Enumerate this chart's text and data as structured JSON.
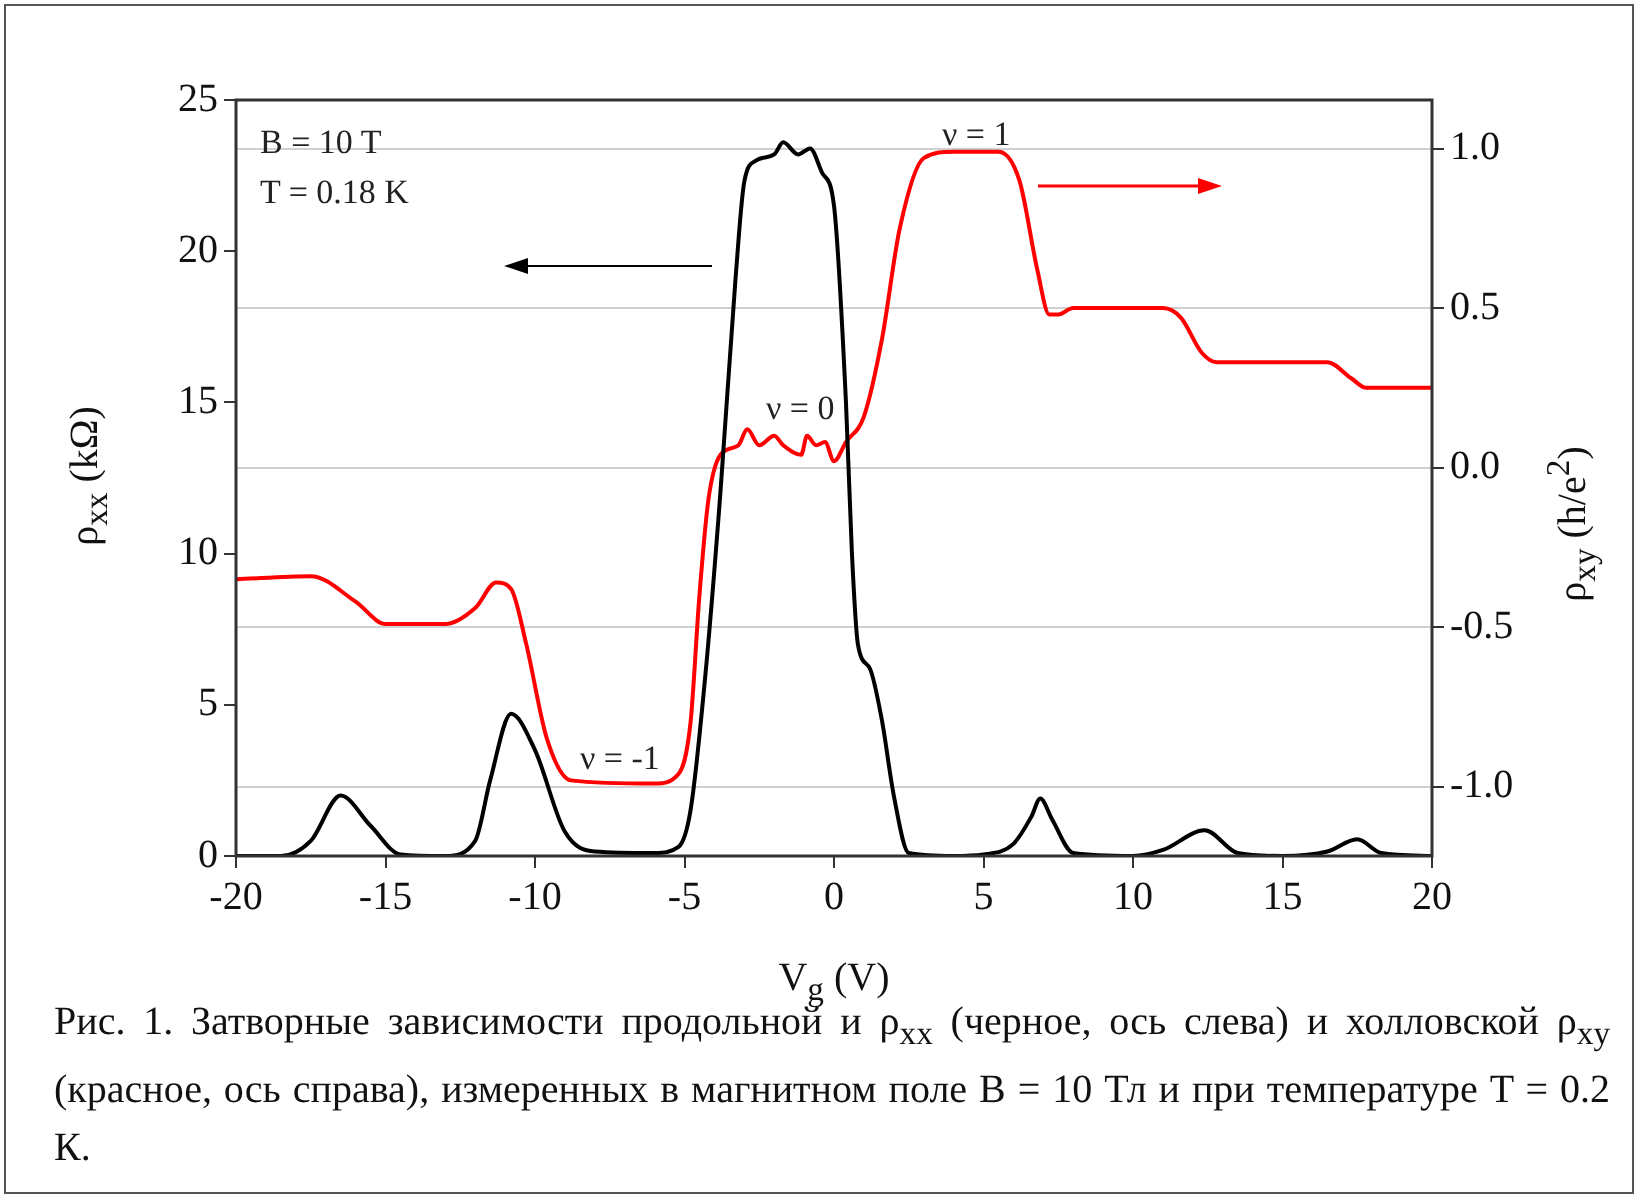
{
  "chart_data": {
    "type": "line",
    "xlabel": "V$_{g}$ (V)",
    "ylabel": "ρ$_{xx}$ (kΩ)",
    "y2label": "ρ$_{xy}$ (h/e$^{2}$)",
    "xlim": [
      -20,
      20
    ],
    "xticks": [
      -20,
      -15,
      -10,
      -5,
      0,
      5,
      10,
      15,
      20
    ],
    "ylim": [
      0,
      25
    ],
    "yticks": [
      0,
      5,
      10,
      15,
      20,
      25
    ],
    "y2lim": [
      -1.217,
      1.152
    ],
    "y2ticks": [
      {
        "value": -1,
        "label": "-1.0"
      },
      {
        "value": -0.5,
        "label": "-0.5"
      },
      {
        "value": 0,
        "label": "0.0"
      },
      {
        "value": 0.5,
        "label": "0.5"
      },
      {
        "value": 1,
        "label": "1.0"
      }
    ],
    "grid": "y",
    "legend": false,
    "marker": "none",
    "line_style": "solid",
    "series": [
      {
        "color": "#000000",
        "x": [
          -20,
          -18.5,
          -17.5,
          -16.5,
          -15.5,
          -14.5,
          -13,
          -12,
          -11.5,
          -10.8,
          -10,
          -9,
          -8,
          -6,
          -5.2,
          -4.8,
          -4.3,
          -3.8,
          -3.3,
          -3,
          -2.6,
          -2,
          -1.7,
          -1.2,
          -0.8,
          -0.4,
          0,
          0.4,
          0.6,
          0.8,
          1.2,
          1.6,
          2,
          2.5,
          4,
          5,
          6,
          6.6,
          6.9,
          7.3,
          8,
          10,
          11,
          12.4,
          13.5,
          15,
          16.5,
          17.5,
          18.3,
          20
        ],
        "values": [
          0,
          0,
          0.5,
          2,
          1,
          0.05,
          0,
          0.5,
          2.5,
          4.7,
          3.5,
          0.8,
          0.15,
          0.1,
          0.3,
          1.5,
          6,
          12,
          19,
          22.3,
          23,
          23.2,
          23.6,
          23.2,
          23.4,
          22.6,
          21.5,
          15,
          10,
          7,
          6.2,
          4.5,
          2,
          0.1,
          0,
          0.05,
          0.4,
          1.3,
          1.9,
          1.2,
          0.1,
          0,
          0.2,
          0.85,
          0.1,
          0,
          0.15,
          0.55,
          0.1,
          0
        ]
      },
      {
        "color": "#ff0000",
        "axis": "y2",
        "x": [
          -20,
          -17.5,
          -16,
          -15,
          -13,
          -12,
          -11.3,
          -10.8,
          -10.3,
          -9.6,
          -8.8,
          -6,
          -5.2,
          -4.8,
          -4.5,
          -4.2,
          -3.8,
          -3.2,
          -2.9,
          -2.5,
          -2,
          -1.7,
          -1.1,
          -0.9,
          -0.6,
          -0.3,
          0,
          0.4,
          1,
          1.6,
          2.2,
          3,
          4,
          5.5,
          6.2,
          6.8,
          7.2,
          7.5,
          8,
          11,
          11.6,
          12.3,
          12.8,
          16.5,
          17.3,
          17.8,
          20
        ],
        "values": [
          -0.35,
          -0.34,
          -0.42,
          -0.49,
          -0.49,
          -0.44,
          -0.36,
          -0.38,
          -0.55,
          -0.85,
          -0.98,
          -0.99,
          -0.96,
          -0.8,
          -0.4,
          -0.1,
          0.04,
          0.07,
          0.12,
          0.07,
          0.1,
          0.07,
          0.04,
          0.1,
          0.07,
          0.08,
          0.02,
          0.08,
          0.16,
          0.4,
          0.75,
          0.97,
          0.99,
          0.99,
          0.9,
          0.62,
          0.48,
          0.48,
          0.5,
          0.5,
          0.47,
          0.36,
          0.33,
          0.33,
          0.28,
          0.25,
          0.25
        ]
      }
    ],
    "annotations": [
      "B = 10 T",
      "T = 0.18 K",
      "ν = 0",
      "ν = 1",
      "ν = -1",
      "Рис. 1. Затворные зависимости продольной и ρ$_{xx}$ (черное, ось слева) и холловской ρ$_{xy}$ (красное, ось справа), измеренных в магнитном поле B = 10 Тл и при температуре T = 0.2 К."
    ]
  }
}
